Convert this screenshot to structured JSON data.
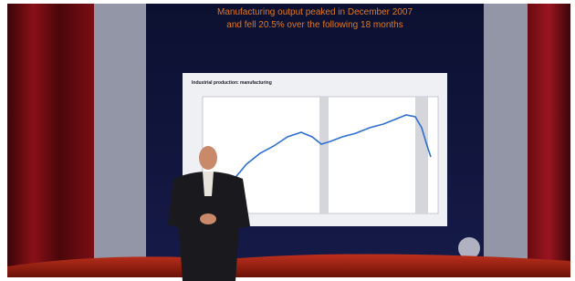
{
  "slide": {
    "headline": [
      "Manufacturing output peaked in December 2007",
      "and fell 20.5% over the following 18 months"
    ],
    "chart_title": "Industrial production: manufacturing"
  }
}
